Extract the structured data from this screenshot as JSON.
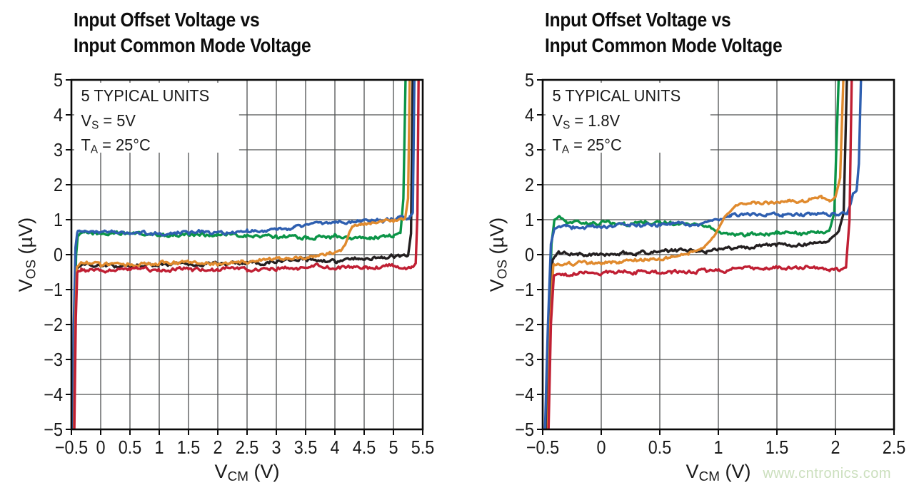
{
  "watermark": {
    "text": "www.cntronics.com",
    "color": "#cbdfbd"
  },
  "colors": {
    "grid": "#4f5052",
    "axis_frame": "#0a0a0a",
    "series_blue": "#2e5fb0",
    "series_green": "#0b9447",
    "series_orange": "#e08a2e",
    "series_black": "#231f20",
    "series_red": "#c01f33"
  },
  "chart_data": [
    {
      "type": "line",
      "title_lines": [
        "Input Offset Voltage vs",
        "Input Common Mode Voltage"
      ],
      "annotation": [
        {
          "pre": "5 TYPICAL UNITS",
          "sub": "",
          "post": ""
        },
        {
          "pre": "V",
          "sub": "S",
          "post": " = 5V"
        },
        {
          "pre": "T",
          "sub": "A",
          "post": " = 25°C"
        }
      ],
      "xlabel": {
        "pre": "V",
        "sub": "CM",
        "post": " (V)"
      },
      "ylabel": {
        "pre": "V",
        "sub": "OS",
        "post": " (µV)"
      },
      "xlim": [
        -0.5,
        5.5
      ],
      "ylim": [
        -5,
        5
      ],
      "x_tick_step": 0.5,
      "y_tick_step": 1,
      "grid": true,
      "x_ticks": [
        "−0.5",
        "0",
        "0.5",
        "1",
        "1.5",
        "2",
        "2.5",
        "3",
        "3.5",
        "4",
        "4.5",
        "5",
        "5.5"
      ],
      "y_ticks": [
        "5",
        "4",
        "3",
        "2",
        "1",
        "0",
        "−1",
        "−2",
        "−3",
        "−4",
        "−5"
      ],
      "series": [
        {
          "name": "unit-green",
          "color": "#0b9447",
          "points": [
            [
              -0.47,
              -5
            ],
            [
              -0.445,
              -2.2
            ],
            [
              -0.42,
              0.0
            ],
            [
              -0.39,
              0.55
            ],
            [
              -0.3,
              0.62
            ],
            [
              0,
              0.6
            ],
            [
              0.5,
              0.58
            ],
            [
              1,
              0.56
            ],
            [
              1.5,
              0.58
            ],
            [
              2,
              0.56
            ],
            [
              2.5,
              0.52
            ],
            [
              3,
              0.53
            ],
            [
              3.5,
              0.5
            ],
            [
              4,
              0.52
            ],
            [
              4.25,
              0.45
            ],
            [
              4.6,
              0.5
            ],
            [
              5,
              0.55
            ],
            [
              5.12,
              0.62
            ],
            [
              5.17,
              1.6
            ],
            [
              5.21,
              5.3
            ]
          ]
        },
        {
          "name": "unit-black",
          "color": "#231f20",
          "points": [
            [
              -0.46,
              -5
            ],
            [
              -0.435,
              -2
            ],
            [
              -0.41,
              -0.4
            ],
            [
              -0.35,
              -0.32
            ],
            [
              0,
              -0.3
            ],
            [
              0.5,
              -0.3
            ],
            [
              1,
              -0.28
            ],
            [
              1.5,
              -0.3
            ],
            [
              2,
              -0.27
            ],
            [
              2.5,
              -0.25
            ],
            [
              3,
              -0.2
            ],
            [
              3.5,
              -0.17
            ],
            [
              4,
              -0.14
            ],
            [
              4.4,
              -0.12
            ],
            [
              4.8,
              -0.1
            ],
            [
              5.1,
              -0.07
            ],
            [
              5.25,
              -0.02
            ],
            [
              5.3,
              0.6
            ],
            [
              5.33,
              5.3
            ]
          ]
        },
        {
          "name": "unit-blue",
          "color": "#2e5fb0",
          "points": [
            [
              -0.485,
              -5
            ],
            [
              -0.46,
              -2
            ],
            [
              -0.43,
              0.2
            ],
            [
              -0.4,
              0.62
            ],
            [
              -0.3,
              0.66
            ],
            [
              0,
              0.63
            ],
            [
              0.5,
              0.6
            ],
            [
              1,
              0.58
            ],
            [
              1.5,
              0.62
            ],
            [
              2,
              0.65
            ],
            [
              2.5,
              0.68
            ],
            [
              3,
              0.73
            ],
            [
              3.3,
              0.78
            ],
            [
              3.6,
              0.85
            ],
            [
              4,
              0.92
            ],
            [
              4.4,
              0.97
            ],
            [
              4.8,
              1.02
            ],
            [
              5.1,
              1.05
            ],
            [
              5.28,
              1.07
            ],
            [
              5.33,
              1.2
            ],
            [
              5.36,
              5.3
            ]
          ]
        },
        {
          "name": "unit-orange",
          "color": "#e08a2e",
          "points": [
            [
              -0.455,
              -5
            ],
            [
              -0.43,
              -1.8
            ],
            [
              -0.405,
              -0.35
            ],
            [
              -0.35,
              -0.24
            ],
            [
              0,
              -0.26
            ],
            [
              0.5,
              -0.26
            ],
            [
              1,
              -0.25
            ],
            [
              1.5,
              -0.23
            ],
            [
              2,
              -0.25
            ],
            [
              2.4,
              -0.22
            ],
            [
              2.8,
              -0.16
            ],
            [
              3.2,
              -0.1
            ],
            [
              3.6,
              -0.04
            ],
            [
              3.9,
              0.02
            ],
            [
              4.1,
              0.08
            ],
            [
              4.17,
              0.25
            ],
            [
              4.24,
              0.6
            ],
            [
              4.3,
              0.8
            ],
            [
              4.45,
              0.88
            ],
            [
              4.7,
              0.92
            ],
            [
              5,
              0.97
            ],
            [
              5.2,
              1.02
            ],
            [
              5.25,
              1.6
            ],
            [
              5.28,
              5.3
            ]
          ]
        },
        {
          "name": "unit-red",
          "color": "#c01f33",
          "points": [
            [
              -0.45,
              -5
            ],
            [
              -0.425,
              -1.8
            ],
            [
              -0.4,
              -0.52
            ],
            [
              -0.33,
              -0.46
            ],
            [
              0,
              -0.45
            ],
            [
              0.5,
              -0.43
            ],
            [
              1,
              -0.45
            ],
            [
              1.5,
              -0.42
            ],
            [
              2,
              -0.41
            ],
            [
              2.5,
              -0.4
            ],
            [
              3,
              -0.39
            ],
            [
              3.5,
              -0.36
            ],
            [
              4,
              -0.36
            ],
            [
              4.5,
              -0.34
            ],
            [
              5,
              -0.36
            ],
            [
              5.3,
              -0.36
            ],
            [
              5.38,
              -0.28
            ],
            [
              5.41,
              1.2
            ],
            [
              5.43,
              5.3
            ]
          ]
        }
      ]
    },
    {
      "type": "line",
      "title_lines": [
        "Input Offset Voltage vs",
        "Input Common Mode Voltage"
      ],
      "annotation": [
        {
          "pre": "5 TYPICAL UNITS",
          "sub": "",
          "post": ""
        },
        {
          "pre": "V",
          "sub": "S",
          "post": " = 1.8V"
        },
        {
          "pre": "T",
          "sub": "A",
          "post": " = 25°C"
        }
      ],
      "xlabel": {
        "pre": "V",
        "sub": "CM",
        "post": " (V)"
      },
      "ylabel": {
        "pre": "V",
        "sub": "OS",
        "post": " (µV)"
      },
      "xlim": [
        -0.5,
        2.5
      ],
      "ylim": [
        -5,
        5
      ],
      "x_tick_step": 0.5,
      "y_tick_step": 1,
      "grid": true,
      "x_ticks": [
        "−0.5",
        "0",
        "0.5",
        "1",
        "1.5",
        "2",
        "2.5"
      ],
      "y_ticks": [
        "5",
        "4",
        "3",
        "2",
        "1",
        "0",
        "−1",
        "−2",
        "−3",
        "−4",
        "−5"
      ],
      "series": [
        {
          "name": "unit-green",
          "color": "#0b9447",
          "points": [
            [
              -0.465,
              -5
            ],
            [
              -0.445,
              -2
            ],
            [
              -0.425,
              0.3
            ],
            [
              -0.4,
              1.0
            ],
            [
              -0.36,
              1.1
            ],
            [
              -0.3,
              0.95
            ],
            [
              -0.1,
              0.9
            ],
            [
              0.2,
              0.88
            ],
            [
              0.5,
              0.9
            ],
            [
              0.75,
              0.87
            ],
            [
              0.92,
              0.8
            ],
            [
              1.0,
              0.65
            ],
            [
              1.08,
              0.58
            ],
            [
              1.25,
              0.6
            ],
            [
              1.5,
              0.63
            ],
            [
              1.7,
              0.6
            ],
            [
              1.85,
              0.63
            ],
            [
              1.95,
              0.7
            ],
            [
              1.99,
              1.2
            ],
            [
              2.03,
              5.3
            ]
          ]
        },
        {
          "name": "unit-black",
          "color": "#231f20",
          "points": [
            [
              -0.46,
              -5
            ],
            [
              -0.44,
              -2
            ],
            [
              -0.415,
              -0.15
            ],
            [
              -0.37,
              0.05
            ],
            [
              -0.2,
              0.0
            ],
            [
              0,
              0.02
            ],
            [
              0.3,
              0.05
            ],
            [
              0.6,
              0.08
            ],
            [
              0.9,
              0.12
            ],
            [
              1.2,
              0.2
            ],
            [
              1.5,
              0.27
            ],
            [
              1.75,
              0.3
            ],
            [
              1.95,
              0.42
            ],
            [
              2.03,
              0.7
            ],
            [
              2.07,
              1.2
            ],
            [
              2.1,
              5.3
            ]
          ]
        },
        {
          "name": "unit-blue",
          "color": "#2e5fb0",
          "points": [
            [
              -0.48,
              -5
            ],
            [
              -0.455,
              -2
            ],
            [
              -0.43,
              0.3
            ],
            [
              -0.4,
              0.75
            ],
            [
              -0.3,
              0.8
            ],
            [
              0,
              0.8
            ],
            [
              0.3,
              0.83
            ],
            [
              0.6,
              0.85
            ],
            [
              0.85,
              0.88
            ],
            [
              1.0,
              1.02
            ],
            [
              1.1,
              1.12
            ],
            [
              1.25,
              1.17
            ],
            [
              1.4,
              1.12
            ],
            [
              1.55,
              1.13
            ],
            [
              1.7,
              1.17
            ],
            [
              1.85,
              1.15
            ],
            [
              2.0,
              1.15
            ],
            [
              2.1,
              1.18
            ],
            [
              2.13,
              1.45
            ],
            [
              2.15,
              1.75
            ],
            [
              2.18,
              1.8
            ],
            [
              2.2,
              2.6
            ],
            [
              2.22,
              5.3
            ]
          ]
        },
        {
          "name": "unit-orange",
          "color": "#e08a2e",
          "points": [
            [
              -0.455,
              -5
            ],
            [
              -0.435,
              -2
            ],
            [
              -0.41,
              -0.32
            ],
            [
              -0.35,
              -0.28
            ],
            [
              -0.1,
              -0.24
            ],
            [
              0.15,
              -0.2
            ],
            [
              0.4,
              -0.14
            ],
            [
              0.6,
              -0.07
            ],
            [
              0.75,
              0.05
            ],
            [
              0.88,
              0.22
            ],
            [
              0.97,
              0.55
            ],
            [
              1.05,
              1.05
            ],
            [
              1.15,
              1.4
            ],
            [
              1.28,
              1.52
            ],
            [
              1.45,
              1.5
            ],
            [
              1.6,
              1.55
            ],
            [
              1.75,
              1.55
            ],
            [
              1.88,
              1.62
            ],
            [
              1.95,
              1.55
            ],
            [
              2.0,
              1.65
            ],
            [
              2.04,
              2.2
            ],
            [
              2.07,
              5.3
            ]
          ]
        },
        {
          "name": "unit-red",
          "color": "#c01f33",
          "points": [
            [
              -0.45,
              -5
            ],
            [
              -0.43,
              -2
            ],
            [
              -0.405,
              -0.6
            ],
            [
              -0.33,
              -0.55
            ],
            [
              0,
              -0.52
            ],
            [
              0.3,
              -0.5
            ],
            [
              0.6,
              -0.5
            ],
            [
              0.9,
              -0.46
            ],
            [
              1.2,
              -0.4
            ],
            [
              1.4,
              -0.35
            ],
            [
              1.6,
              -0.4
            ],
            [
              1.8,
              -0.37
            ],
            [
              1.95,
              -0.42
            ],
            [
              2.05,
              -0.42
            ],
            [
              2.09,
              -0.35
            ],
            [
              2.12,
              1.0
            ],
            [
              2.14,
              5.3
            ]
          ]
        }
      ]
    }
  ]
}
